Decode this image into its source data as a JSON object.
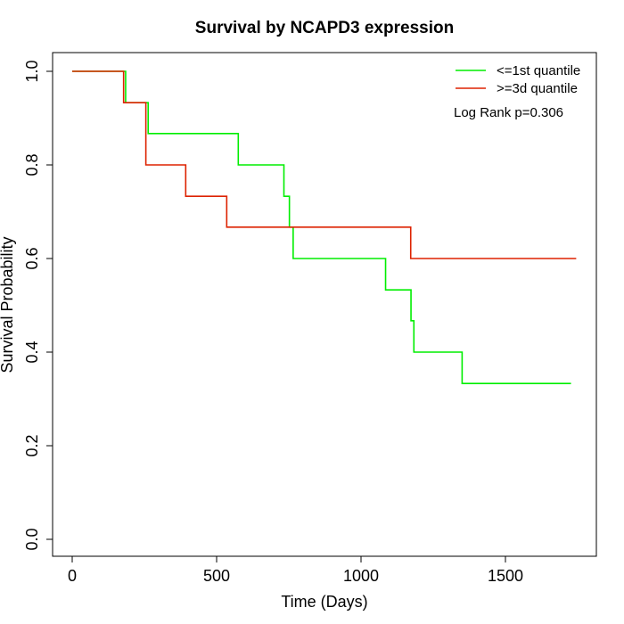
{
  "chart_data": {
    "type": "line",
    "title": "Survival by NCAPD3 expression",
    "xlabel": "Time (Days)",
    "ylabel": "Survival Probability",
    "xlim": [
      0,
      1750
    ],
    "ylim": [
      0,
      1
    ],
    "x_ticks": [
      0,
      500,
      1000,
      1500
    ],
    "y_ticks": [
      0.0,
      0.2,
      0.4,
      0.6,
      0.8,
      1.0
    ],
    "x_tick_labels": [
      "0",
      "500",
      "1000",
      "1500"
    ],
    "y_tick_labels": [
      "0.0",
      "0.2",
      "0.4",
      "0.6",
      "0.8",
      "1.0"
    ],
    "grid": false,
    "legend_position": "top-right",
    "annotation": "Log Rank p=0.306",
    "series": [
      {
        "name": "<=1st quantile",
        "color": "#00ee00",
        "step": true,
        "x": [
          0,
          185,
          263,
          575,
          733,
          752,
          765,
          1085,
          1173,
          1183,
          1350,
          1727
        ],
        "y": [
          1.0,
          0.933,
          0.867,
          0.8,
          0.733,
          0.667,
          0.6,
          0.533,
          0.467,
          0.4,
          0.333,
          0.333
        ]
      },
      {
        "name": ">=3d quantile",
        "color": "#dd2200",
        "step": true,
        "x": [
          0,
          178,
          255,
          393,
          535,
          1172,
          1745
        ],
        "y": [
          1.0,
          0.933,
          0.8,
          0.733,
          0.667,
          0.6,
          0.6
        ]
      }
    ]
  }
}
